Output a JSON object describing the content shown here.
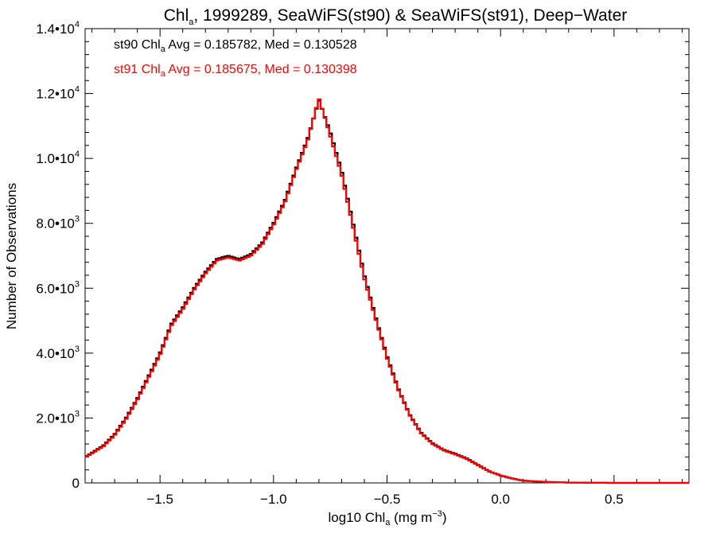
{
  "chart_data": {
    "type": "line",
    "style": "step-histogram",
    "title_parts": {
      "pre": "Chl",
      "sub": "a",
      "post": ", 1999289, SeaWiFS(st90) & SeaWiFS(st91), Deep−Water"
    },
    "xlabel_parts": {
      "pre": "log10 Chl",
      "sub": "a",
      "mid": " (mg m",
      "sup": "−3",
      "post": ")"
    },
    "ylabel": "Number of Observations",
    "xlim": [
      -1.83,
      0.83
    ],
    "ylim": [
      0,
      14000
    ],
    "x_ticks": [
      {
        "value": -1.5,
        "label": "−1.5"
      },
      {
        "value": -1.0,
        "label": "−1.0"
      },
      {
        "value": -0.5,
        "label": "−0.5"
      },
      {
        "value": 0.0,
        "label": "0.0"
      },
      {
        "value": 0.5,
        "label": "0.5"
      }
    ],
    "x_minor_step": 0.1,
    "y_ticks": [
      {
        "value": 0,
        "mant": "0",
        "exp": ""
      },
      {
        "value": 2000,
        "mant": "2.0•10",
        "exp": "3"
      },
      {
        "value": 4000,
        "mant": "4.0•10",
        "exp": "3"
      },
      {
        "value": 6000,
        "mant": "6.0•10",
        "exp": "3"
      },
      {
        "value": 8000,
        "mant": "8.0•10",
        "exp": "3"
      },
      {
        "value": 10000,
        "mant": "1.0•10",
        "exp": "4"
      },
      {
        "value": 12000,
        "mant": "1.2•10",
        "exp": "4"
      },
      {
        "value": 14000,
        "mant": "1.4•10",
        "exp": "4"
      }
    ],
    "y_minor_step": 400,
    "grid": false,
    "legend_position": "top-left",
    "legend": [
      {
        "pre": "st90 Chl",
        "sub": "a",
        "post": " Avg = 0.185782, Med = 0.130528",
        "color": "#000000"
      },
      {
        "pre": "st91 Chl",
        "sub": "a",
        "post": " Avg = 0.185675, Med = 0.130398",
        "color": "#ff0000"
      }
    ],
    "series": [
      {
        "color": "#000000",
        "x": [
          -1.83,
          -1.75,
          -1.7,
          -1.65,
          -1.6,
          -1.55,
          -1.5,
          -1.45,
          -1.4,
          -1.35,
          -1.3,
          -1.25,
          -1.2,
          -1.15,
          -1.1,
          -1.05,
          -1.0,
          -0.95,
          -0.9,
          -0.85,
          -0.8,
          -0.75,
          -0.7,
          -0.65,
          -0.6,
          -0.55,
          -0.5,
          -0.45,
          -0.4,
          -0.35,
          -0.3,
          -0.25,
          -0.2,
          -0.15,
          -0.1,
          -0.05,
          0.0,
          0.05,
          0.1,
          0.2,
          0.3,
          0.4,
          0.5,
          0.6,
          0.7,
          0.83
        ],
        "y": [
          800,
          1150,
          1500,
          2000,
          2600,
          3300,
          4000,
          4900,
          5400,
          6000,
          6500,
          6900,
          7000,
          6900,
          7050,
          7400,
          8000,
          8700,
          9700,
          10600,
          11800,
          10800,
          9600,
          8000,
          6400,
          5100,
          3900,
          2900,
          2100,
          1550,
          1220,
          1020,
          900,
          760,
          560,
          360,
          230,
          140,
          70,
          30,
          10,
          5,
          0,
          0,
          0,
          0
        ]
      },
      {
        "color": "#ff0000",
        "x": [
          -1.83,
          -1.75,
          -1.7,
          -1.65,
          -1.6,
          -1.55,
          -1.5,
          -1.45,
          -1.4,
          -1.35,
          -1.3,
          -1.25,
          -1.2,
          -1.15,
          -1.1,
          -1.05,
          -1.0,
          -0.95,
          -0.9,
          -0.85,
          -0.8,
          -0.75,
          -0.7,
          -0.65,
          -0.6,
          -0.55,
          -0.5,
          -0.45,
          -0.4,
          -0.35,
          -0.3,
          -0.25,
          -0.2,
          -0.15,
          -0.1,
          -0.05,
          0.0,
          0.05,
          0.1,
          0.2,
          0.3,
          0.4,
          0.5,
          0.6,
          0.7,
          0.83
        ],
        "y": [
          780,
          1120,
          1470,
          1960,
          2560,
          3250,
          3950,
          4850,
          5350,
          5950,
          6450,
          6850,
          6950,
          6850,
          7000,
          7350,
          7950,
          8650,
          9650,
          10550,
          11850,
          10700,
          9500,
          7900,
          6300,
          5050,
          3850,
          2870,
          2080,
          1530,
          1200,
          1000,
          880,
          740,
          545,
          350,
          225,
          135,
          65,
          28,
          9,
          4,
          0,
          0,
          0,
          0
        ]
      }
    ]
  }
}
